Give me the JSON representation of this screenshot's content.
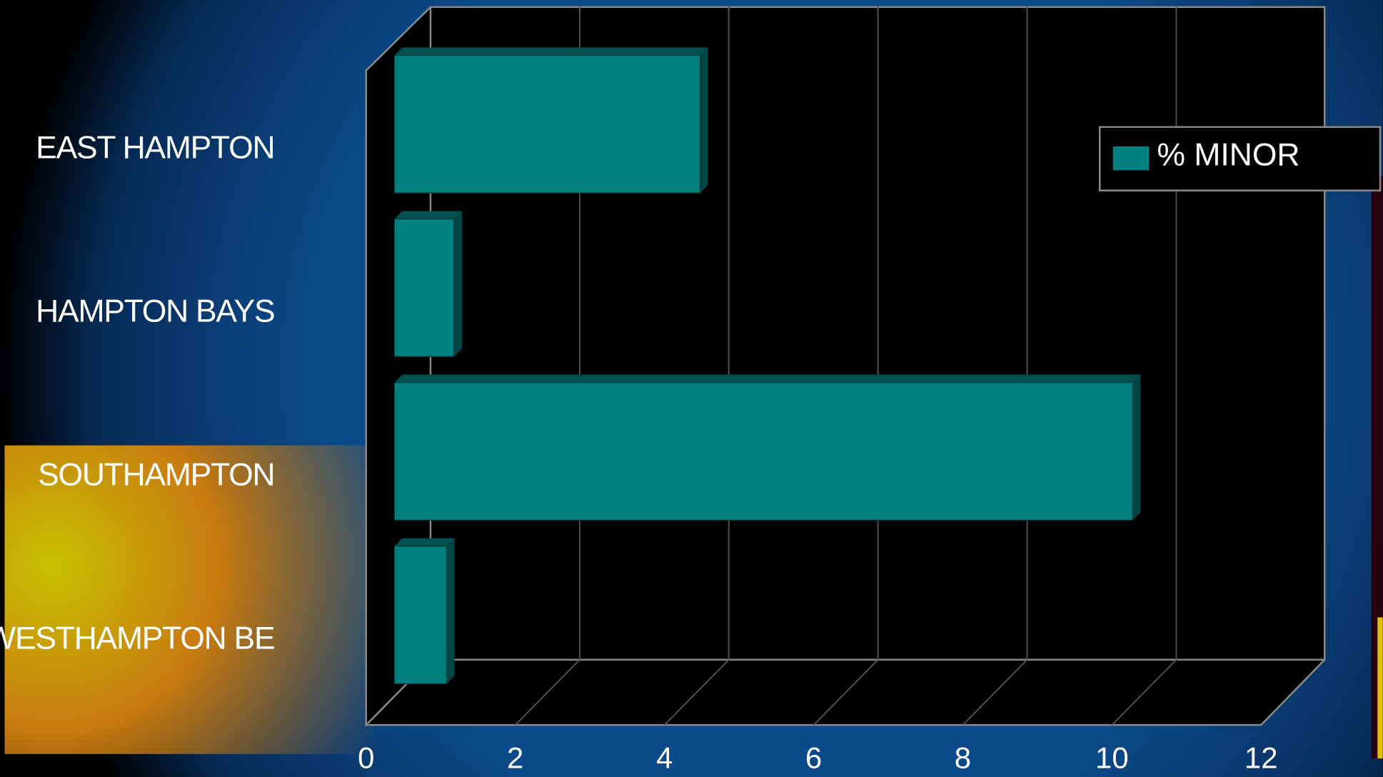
{
  "chart_data": {
    "type": "bar",
    "orientation": "horizontal",
    "categories": [
      "EAST HAMPTON",
      "HAMPTON BAYS",
      "SOUTHAMPTON",
      "WESTHAMPTON BE"
    ],
    "series": [
      {
        "name": "% MINOR",
        "color": "#008080",
        "values": [
          4.1,
          0.8,
          9.9,
          0.7
        ]
      }
    ],
    "xlim": [
      0,
      12
    ],
    "xticks": [
      0,
      2,
      4,
      6,
      8,
      10,
      12
    ],
    "grid": true,
    "legend": "upper right"
  }
}
